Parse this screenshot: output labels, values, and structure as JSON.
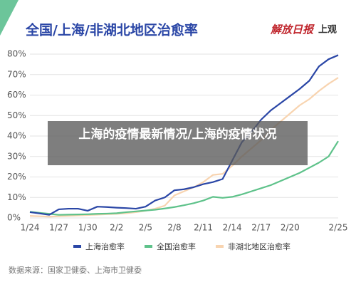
{
  "chart_data": {
    "type": "line",
    "title": "全国/上海/非湖北地区治愈率",
    "logos": [
      "解放日报",
      "上观"
    ],
    "source": "数据来源：国家卫健委、上海市卫健委",
    "overlay_text": "上海的疫情最新情况/上海的疫情状况",
    "categories": [
      "1/24",
      null,
      null,
      "1/27",
      null,
      null,
      "1/30",
      null,
      null,
      "2/2",
      null,
      null,
      "2/5",
      null,
      null,
      "2/8",
      null,
      null,
      "2/11",
      null,
      null,
      "2/14",
      null,
      null,
      "2/17",
      null,
      null,
      "2/20",
      null,
      null,
      null,
      null,
      "2/25"
    ],
    "ylim": [
      0,
      80
    ],
    "yticks": [
      {
        "value": 0,
        "label": "0%"
      },
      {
        "value": 10,
        "label": "10%"
      },
      {
        "value": 20,
        "label": "20%"
      },
      {
        "value": 30,
        "label": "30%"
      },
      {
        "value": 40,
        "label": "40%"
      },
      {
        "value": 50,
        "label": "50%"
      },
      {
        "value": 60,
        "label": "60%"
      },
      {
        "value": 70,
        "label": "70%"
      },
      {
        "value": 80,
        "label": "80%"
      }
    ],
    "grid": true,
    "series": [
      {
        "name": "上海治愈率",
        "color": "#2a46a6",
        "values": [
          2.8,
          2.2,
          1.5,
          4.2,
          4.5,
          4.5,
          3.5,
          5.5,
          5.3,
          5,
          4.8,
          4.5,
          5.5,
          8.5,
          10,
          13.5,
          14,
          15,
          16.5,
          17.5,
          19,
          28,
          37,
          42,
          48,
          52.5,
          56,
          59.5,
          63,
          67,
          74,
          77.5,
          79.5
        ]
      },
      {
        "name": "全国治愈率",
        "color": "#5ec28a",
        "values": [
          3,
          2.5,
          2,
          1.5,
          1.6,
          1.7,
          1.8,
          2,
          2.1,
          2.3,
          2.8,
          3.2,
          3.6,
          4,
          4.6,
          5.3,
          6.2,
          7.2,
          8.5,
          10.3,
          9.8,
          10.3,
          11.5,
          13,
          14.5,
          16,
          18,
          20,
          22,
          24.5,
          27,
          30,
          37.5
        ]
      },
      {
        "name": "非湖北地区治愈率",
        "color": "#f8d4b0",
        "values": [
          1,
          0.8,
          0.6,
          0.8,
          1,
          1.2,
          1.4,
          1.6,
          1.8,
          2,
          2.3,
          2.8,
          3.5,
          4.5,
          6,
          11,
          13,
          15,
          17.5,
          21,
          21.5,
          25.5,
          30,
          34,
          38,
          43,
          47,
          51,
          55,
          58,
          62,
          65.5,
          68.5
        ]
      }
    ]
  }
}
